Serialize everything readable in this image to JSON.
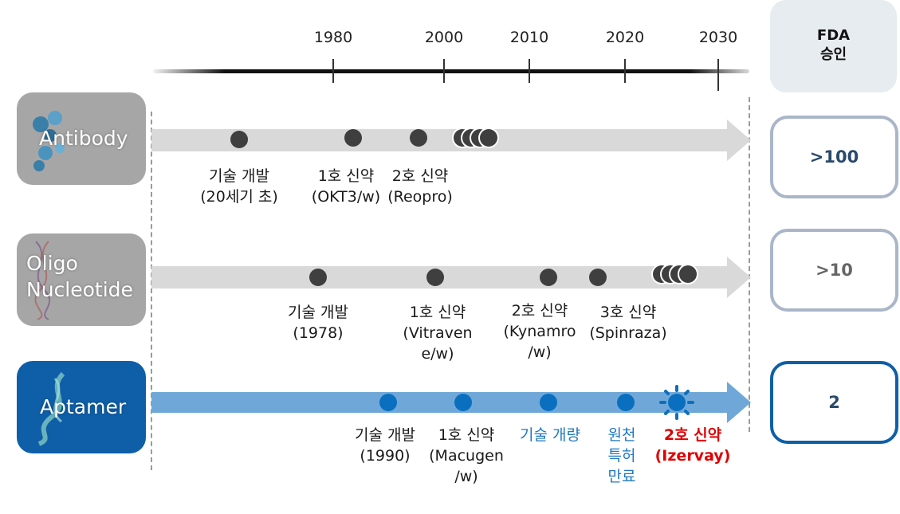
{
  "timeline": {
    "years": [
      "1980",
      "2000",
      "2010",
      "2020",
      "2030"
    ]
  },
  "rows": [
    {
      "label_lines": [
        "Antibody"
      ],
      "events": [
        {
          "lines": [
            "기술 개발",
            "(20세기 초)"
          ]
        },
        {
          "lines": [
            "1호 신약",
            "(OKT3/w)"
          ]
        },
        {
          "lines": [
            "2호 신약",
            "(Reopro)"
          ]
        }
      ],
      "fda_count": ">100"
    },
    {
      "label_lines": [
        "Oligo",
        "Nucleotide"
      ],
      "events": [
        {
          "lines": [
            "기술 개발",
            "(1978)"
          ]
        },
        {
          "lines": [
            "1호 신약",
            "(Vitraven",
            "e/w)"
          ]
        },
        {
          "lines": [
            "2호 신약",
            "(Kynamro",
            "/w)"
          ]
        },
        {
          "lines": [
            "3호 신약",
            "(Spinraza)"
          ]
        }
      ],
      "fda_count": ">10"
    },
    {
      "label_lines": [
        "Aptamer"
      ],
      "events": [
        {
          "lines": [
            "기술 개발",
            "(1990)"
          ]
        },
        {
          "lines": [
            "1호 신약",
            "(Macugen",
            "/w)"
          ]
        },
        {
          "lines": [
            "기술 개량"
          ]
        },
        {
          "lines": [
            "원천",
            "특허",
            "만료"
          ]
        },
        {
          "lines": [
            "2호 신약",
            "(Izervay)"
          ]
        }
      ],
      "fda_count": "2"
    }
  ],
  "fda_header": [
    "FDA",
    "승인"
  ],
  "colors": {
    "gray_box": "#a6a6a6",
    "gray_arrow": "#d9d9d9",
    "dark_dot": "#3f3f3f",
    "blue_box": "#0e5fa8",
    "blue_arrow": "#6fa8d8",
    "blue_dot": "#0b6fbf",
    "blue_text": "#1f78c1",
    "red_text": "#e00000",
    "fda_header_bg": "#e6ecef",
    "fda_border_gray": "#aab6c8",
    "fda_border_blue": "#0e5fa8"
  }
}
